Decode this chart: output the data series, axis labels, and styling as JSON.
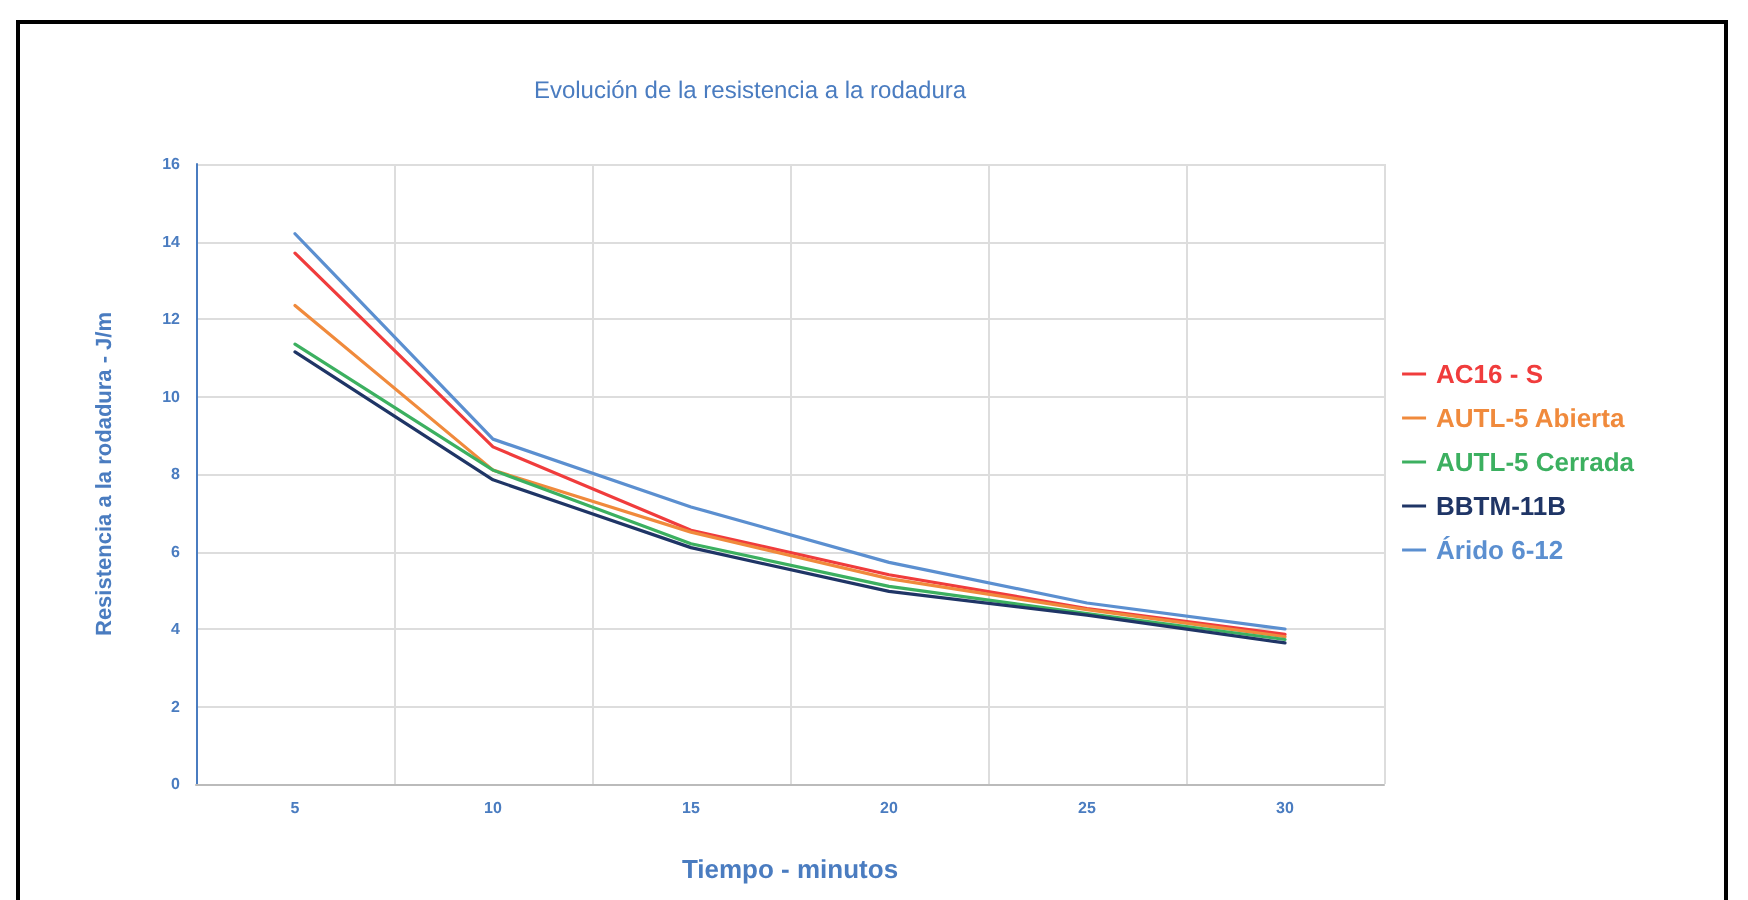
{
  "chart_data": {
    "type": "line",
    "title": "Evolución de la resistencia a la rodadura",
    "xlabel": "Tiempo - minutos",
    "ylabel": "Resistencia a la rodadura - J/m",
    "categories": [
      "5",
      "10",
      "15",
      "20",
      "25",
      "30"
    ],
    "series": [
      {
        "name": "AC16 - S",
        "color": "#f03c3c",
        "values": [
          13.7,
          8.7,
          6.55,
          5.4,
          4.53,
          3.86
        ]
      },
      {
        "name": "AUTL-5 Abierta",
        "color": "#f08a3c",
        "values": [
          12.35,
          8.1,
          6.5,
          5.3,
          4.5,
          3.8
        ]
      },
      {
        "name": "AUTL-5 Cerrada",
        "color": "#3cb060",
        "values": [
          11.35,
          8.1,
          6.2,
          5.1,
          4.4,
          3.73
        ]
      },
      {
        "name": "BBTM-11B",
        "color": "#1f3566",
        "values": [
          11.15,
          7.85,
          6.1,
          4.97,
          4.36,
          3.64
        ]
      },
      {
        "name": "Árido 6-12",
        "color": "#5b8fd0",
        "values": [
          14.2,
          8.9,
          7.15,
          5.72,
          4.67,
          4.0
        ]
      }
    ],
    "ylim": [
      0,
      16
    ],
    "yticks": [
      0,
      2,
      4,
      6,
      8,
      10,
      12,
      14,
      16
    ],
    "grid": true,
    "legend": "right",
    "marker": "none",
    "line_style": "solid"
  }
}
